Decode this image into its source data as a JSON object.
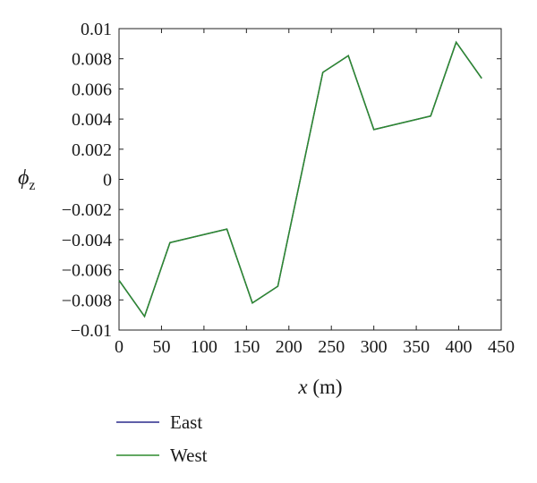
{
  "chart_data": {
    "type": "line",
    "title": "",
    "xlabel": {
      "var": "x",
      "unit": " (m)"
    },
    "ylabel": {
      "symbol": "ϕ",
      "sub": "z"
    },
    "xlim": [
      0,
      450
    ],
    "ylim": [
      -0.01,
      0.01
    ],
    "xticks": [
      0,
      50,
      100,
      150,
      200,
      250,
      300,
      350,
      400,
      450
    ],
    "xtick_labels": [
      "0",
      "50",
      "100",
      "150",
      "200",
      "250",
      "300",
      "350",
      "400",
      "450"
    ],
    "yticks": [
      0.01,
      0.008,
      0.006,
      0.004,
      0.002,
      0,
      -0.002,
      -0.004,
      -0.006,
      -0.008,
      -0.01
    ],
    "ytick_labels": [
      "0.01",
      "0.008",
      "0.006",
      "0.004",
      "0.002",
      "0",
      "−0.002",
      "−0.004",
      "−0.006",
      "−0.008",
      "−0.01"
    ],
    "grid": false,
    "legend_position": "below",
    "series": [
      {
        "name": "East",
        "color": "#2a2a8c",
        "x": [
          0,
          30,
          60,
          127,
          157,
          187,
          240,
          270,
          300,
          367,
          397,
          427
        ],
        "y": [
          -0.0067,
          -0.0091,
          -0.0042,
          -0.0033,
          -0.0082,
          -0.0071,
          0.0071,
          0.0082,
          0.0033,
          0.0042,
          0.0091,
          0.0067
        ]
      },
      {
        "name": "West",
        "color": "#2e8b2e",
        "x": [
          0,
          30,
          60,
          127,
          157,
          187,
          240,
          270,
          300,
          367,
          397,
          427
        ],
        "y": [
          -0.0067,
          -0.0091,
          -0.0042,
          -0.0033,
          -0.0082,
          -0.0071,
          0.0071,
          0.0082,
          0.0033,
          0.0042,
          0.0091,
          0.0067
        ]
      }
    ]
  }
}
